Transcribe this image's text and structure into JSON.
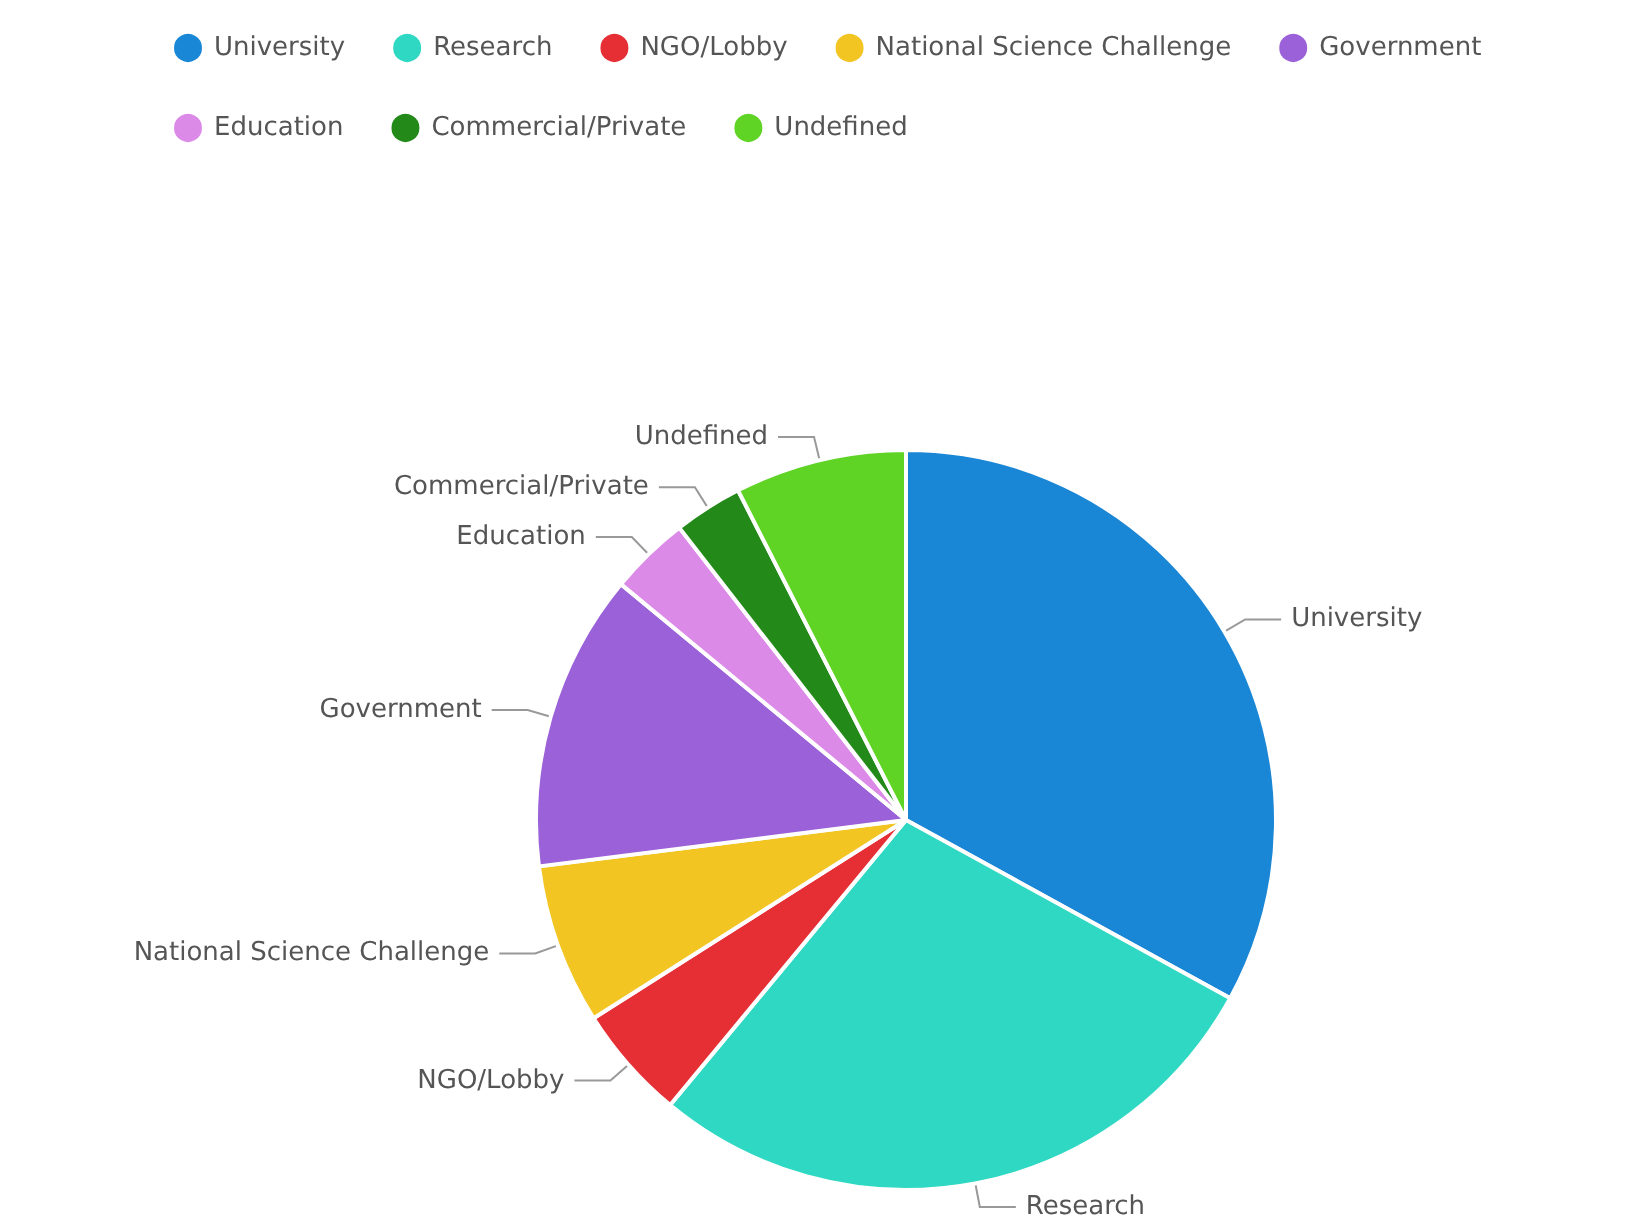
{
  "chart_data": {
    "type": "pie",
    "categories": [
      "University",
      "Research",
      "NGO/Lobby",
      "National Science Challenge",
      "Government",
      "Education",
      "Commercial/Private",
      "Undefined"
    ],
    "values": [
      33,
      28,
      5,
      7,
      13,
      3.5,
      3,
      7.5
    ],
    "colors": [
      "#1a86d6",
      "#2ed8c3",
      "#e52f35",
      "#f2c523",
      "#9b61d8",
      "#dc8ae8",
      "#238a1a",
      "#5fd425"
    ],
    "legend": "top left"
  }
}
